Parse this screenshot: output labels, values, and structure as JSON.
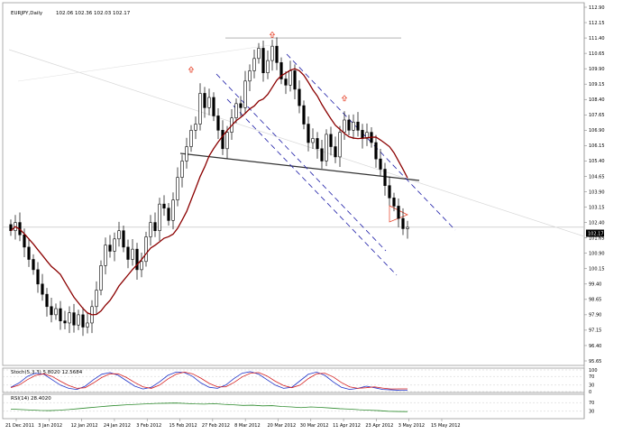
{
  "window": {
    "chart_label": "EURJPY,Daily",
    "ohlc_readout": "102.06 102.36 102.03 102.17",
    "current_price_tag": "102.17"
  },
  "colors": {
    "background": "#ffffff",
    "candle": "#000000",
    "moving_average": "#8b0000",
    "channel_lines": "#1a1aa6",
    "trend_line": "#333333",
    "fractal_arrows": "#e53c22",
    "stoch_main": "#1e32c8",
    "stoch_signal": "#d42020",
    "rsi_line": "#2e8b2e"
  },
  "chart_data": [
    {
      "type": "candlestick",
      "title": "EURJPY,Daily",
      "y_ticks": [
        "112.90",
        "112.15",
        "111.40",
        "110.65",
        "109.90",
        "109.15",
        "108.40",
        "107.65",
        "106.90",
        "106.15",
        "105.40",
        "104.65",
        "103.90",
        "103.15",
        "102.40",
        "101.65",
        "100.90",
        "100.15",
        "99.40",
        "98.65",
        "97.90",
        "97.15",
        "96.40",
        "95.65"
      ],
      "ylim": [
        95.65,
        112.9
      ],
      "x_ticks": [
        "21 Dec 2011",
        "3 Jan 2012",
        "12 Jan 2012",
        "24 Jan 2012",
        "3 Feb 2012",
        "15 Feb 2012",
        "27 Feb 2012",
        "8 Mar 2012",
        "20 Mar 2012",
        "30 Mar 2012",
        "11 Apr 2012",
        "23 Apr 2012",
        "3 May 2012",
        "15 May 2012"
      ],
      "closes": [
        102.0,
        102.4,
        101.8,
        101.2,
        100.6,
        100.1,
        99.4,
        98.9,
        98.3,
        97.9,
        98.2,
        97.6,
        97.5,
        98.0,
        97.4,
        97.9,
        97.3,
        97.5,
        98.3,
        99.1,
        100.3,
        101.3,
        101.0,
        101.6,
        102.0,
        101.2,
        100.6,
        101.1,
        100.1,
        100.5,
        101.7,
        102.4,
        102.0,
        103.3,
        103.1,
        102.5,
        103.5,
        104.6,
        105.4,
        106.1,
        106.9,
        107.2,
        108.7,
        108.0,
        108.5,
        107.6,
        106.9,
        106.0,
        106.8,
        107.5,
        108.2,
        108.0,
        109.3,
        109.8,
        110.4,
        110.9,
        109.7,
        110.3,
        111.0,
        110.2,
        109.4,
        109.1,
        109.8,
        108.9,
        108.1,
        107.2,
        106.3,
        106.5,
        106.0,
        105.4,
        106.7,
        106.1,
        105.6,
        106.8,
        107.4,
        106.9,
        107.3,
        106.9,
        106.5,
        106.8,
        106.3,
        105.5,
        105.0,
        104.2,
        103.6,
        103.2,
        102.6,
        102.1,
        102.17
      ],
      "moving_average": {
        "period": 30
      },
      "fractal_arrows_up": [
        109.6,
        111.3,
        108.2
      ],
      "current_price": 102.17,
      "resistance_level": 111.4
    },
    {
      "type": "line",
      "title": "Stoch(5,3,3) 5.8020 12.5684",
      "y_ticks": [
        "100",
        "70",
        "30",
        "0"
      ],
      "ylim": [
        0,
        100
      ],
      "series": [
        {
          "name": "main",
          "values": [
            20,
            40,
            70,
            85,
            80,
            55,
            30,
            15,
            10,
            25,
            55,
            80,
            88,
            75,
            50,
            25,
            12,
            20,
            45,
            75,
            90,
            88,
            70,
            40,
            20,
            15,
            30,
            60,
            85,
            92,
            80,
            55,
            30,
            15,
            20,
            50,
            80,
            90,
            75,
            45,
            20,
            10,
            15,
            25,
            18,
            10,
            8,
            6,
            5.8
          ]
        },
        {
          "name": "signal",
          "values": [
            18,
            30,
            55,
            75,
            82,
            70,
            48,
            28,
            15,
            18,
            40,
            65,
            82,
            82,
            65,
            42,
            22,
            15,
            30,
            58,
            80,
            90,
            82,
            62,
            38,
            22,
            22,
            42,
            68,
            85,
            88,
            72,
            48,
            28,
            18,
            30,
            60,
            82,
            85,
            68,
            42,
            22,
            15,
            18,
            22,
            16,
            12,
            12.6,
            12.6
          ]
        }
      ]
    },
    {
      "type": "line",
      "title": "RSI(14) 28.4020",
      "y_ticks": [
        "70",
        "30"
      ],
      "ylim": [
        0,
        100
      ],
      "series": [
        {
          "name": "RSI",
          "values": [
            40,
            38,
            36,
            34,
            33,
            35,
            38,
            42,
            46,
            50,
            54,
            57,
            60,
            62,
            64,
            66,
            67,
            68,
            66,
            64,
            63,
            65,
            62,
            60,
            57,
            58,
            55,
            56,
            52,
            50,
            47,
            50,
            48,
            45,
            42,
            40,
            37,
            35,
            33,
            30,
            29,
            28.4
          ]
        }
      ]
    }
  ]
}
